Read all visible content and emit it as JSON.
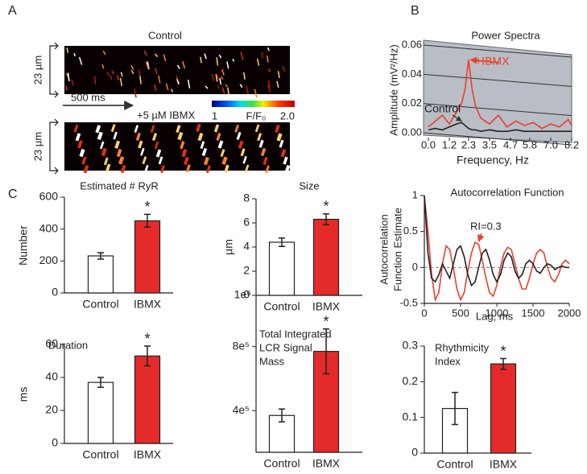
{
  "panel_labels": [
    "A",
    "B",
    "C"
  ],
  "panel_a": {
    "control_label": "Control",
    "scale_y": "23 µm",
    "scale_y_2": "23 µm",
    "scale_x": "500 ms",
    "ibmx_label": "+5  µM IBMX",
    "colorbar_min": "1",
    "colorbar_label": "F/F₀",
    "colorbar_max": "2.0"
  },
  "chart_data": [
    {
      "type": "line",
      "title": "Power Spectra",
      "ylabel": "Amplitude (mV²/Hz)",
      "xlabel": "Frequency, Hz",
      "x": [
        0,
        0.4,
        0.8,
        1.2,
        1.6,
        1.9,
        2.1,
        2.3,
        2.5,
        2.7,
        3.0,
        3.5,
        4.0,
        4.5,
        5.0,
        5.5,
        6.0,
        6.5,
        7.0,
        7.5,
        8.0,
        8.2
      ],
      "series": [
        {
          "name": "+IBMX",
          "color": "#e8402a",
          "values": [
            0.004,
            0.008,
            0.012,
            0.006,
            0.014,
            0.02,
            0.03,
            0.05,
            0.03,
            0.018,
            0.01,
            0.006,
            0.012,
            0.004,
            0.008,
            0.005,
            0.007,
            0.003,
            0.006,
            0.004,
            0.009,
            0.005
          ]
        },
        {
          "name": "Control",
          "color": "#222222",
          "values": [
            0.002,
            0.003,
            0.002,
            0.004,
            0.006,
            0.007,
            0.005,
            0.003,
            0.002,
            0.002,
            0.001,
            0.002,
            0.001,
            0.001,
            0.002,
            0.001,
            0.001,
            0.001,
            0.001,
            0.001,
            0.001,
            0.001
          ]
        }
      ],
      "xlim": [
        0,
        8.2
      ],
      "xticks": [
        {
          "value": 0,
          "label": "0.0"
        },
        1.2,
        2.3,
        3.5,
        4.7,
        5.8,
        {
          "value": 7,
          "label": "7.0"
        },
        8.2
      ],
      "ylim": [
        0,
        0.06
      ],
      "yticks": [
        {
          "value": 0,
          "label": "0.00"
        },
        0.02,
        0.04,
        0.06
      ],
      "grid": true
    },
    {
      "type": "bar",
      "title": "Estimated # RyR",
      "ylabel": "Number",
      "categories": [
        "Control",
        "IBMX"
      ],
      "values": [
        232,
        452
      ],
      "errors": [
        20,
        40
      ],
      "colors": [
        "#ffffff",
        "#e52a2a"
      ],
      "significance": "*",
      "ylim": [
        0,
        600
      ],
      "yticks": [
        0,
        200,
        400,
        600
      ]
    },
    {
      "type": "bar",
      "title": "Size",
      "ylabel": "µm",
      "categories": [
        "Control",
        "IBMX"
      ],
      "values": [
        4.4,
        6.3
      ],
      "errors": [
        0.35,
        0.45
      ],
      "colors": [
        "#ffffff",
        "#e52a2a"
      ],
      "significance": "*",
      "ylim": [
        0,
        8
      ],
      "yticks": [
        0,
        2,
        4,
        6,
        8
      ]
    },
    {
      "type": "line",
      "title": "Autocorrelation Function",
      "ylabel": [
        "Autocorrelation",
        "Function Estimate"
      ],
      "xlabel": "Lag, ms",
      "annotation": "RI=0.3",
      "x": [
        0,
        50,
        100,
        150,
        200,
        250,
        300,
        350,
        400,
        450,
        500,
        550,
        600,
        650,
        700,
        750,
        800,
        850,
        900,
        950,
        1000,
        1050,
        1100,
        1150,
        1200,
        1250,
        1300,
        1350,
        1400,
        1450,
        1500,
        1550,
        1600,
        1650,
        1700,
        1750,
        1800,
        1850,
        1900,
        1950,
        2000
      ],
      "series": [
        {
          "color": "#e8402a",
          "values": [
            1,
            0.5,
            -0.1,
            -0.45,
            -0.35,
            0.05,
            0.3,
            0.25,
            0.0,
            -0.3,
            -0.45,
            -0.35,
            -0.05,
            0.2,
            0.35,
            0.32,
            0.1,
            -0.15,
            -0.35,
            -0.4,
            -0.25,
            0.0,
            0.2,
            0.28,
            0.25,
            0.05,
            -0.15,
            -0.3,
            -0.3,
            -0.15,
            0.05,
            0.2,
            0.25,
            0.2,
            0.0,
            -0.15,
            -0.2,
            -0.1,
            0.05,
            0.1,
            0.05
          ]
        },
        {
          "color": "#222222",
          "values": [
            1,
            0.2,
            -0.15,
            -0.2,
            -0.1,
            0.05,
            -0.05,
            -0.15,
            0.05,
            0.25,
            0.3,
            0.15,
            -0.1,
            -0.25,
            -0.2,
            0.0,
            0.2,
            0.25,
            0.1,
            -0.1,
            -0.2,
            -0.1,
            0.1,
            0.2,
            0.15,
            -0.05,
            -0.15,
            -0.1,
            0.05,
            0.1,
            0.05,
            -0.05,
            -0.08,
            0.0,
            0.05,
            0.03,
            -0.03,
            0.0,
            0.02,
            0.0,
            0.0
          ]
        }
      ],
      "xlim": [
        0,
        2000
      ],
      "xticks": [
        0,
        500,
        1000,
        1500,
        2000
      ],
      "ylim": [
        -0.5,
        1
      ],
      "yticks": [
        -0.5,
        0,
        0.5,
        1
      ]
    },
    {
      "type": "bar",
      "title": "Duration",
      "ylabel": "ms",
      "categories": [
        "Control",
        "IBMX"
      ],
      "values": [
        37,
        53
      ],
      "errors": [
        3,
        6
      ],
      "colors": [
        "#ffffff",
        "#e52a2a"
      ],
      "significance": "*",
      "ylim": [
        0,
        60
      ],
      "yticks": [
        0,
        20,
        40,
        60
      ]
    },
    {
      "type": "bar",
      "title": [
        "Total  Integrated",
        "LCR Signal",
        "Mass"
      ],
      "axis_multiplier": "1e⁶",
      "categories": [
        "Control",
        "IBMX"
      ],
      "values": [
        370000,
        770000
      ],
      "errors": [
        40000,
        140000
      ],
      "colors": [
        "#ffffff",
        "#e52a2a"
      ],
      "significance": "*",
      "ylim": [
        140000,
        1120000
      ],
      "yticks": [
        {
          "value": 400000,
          "label": "4e⁵"
        },
        {
          "value": 800000,
          "label": "8e⁵"
        }
      ]
    },
    {
      "type": "bar",
      "title": [
        "Rhythmicity",
        "Index"
      ],
      "categories": [
        "Control",
        "IBMX"
      ],
      "values": [
        0.125,
        0.25
      ],
      "errors": [
        0.045,
        0.015
      ],
      "colors": [
        "#ffffff",
        "#e52a2a"
      ],
      "significance": "*",
      "ylim": [
        0,
        0.3
      ],
      "yticks": [
        0,
        0.1,
        0.2,
        0.3
      ]
    }
  ]
}
